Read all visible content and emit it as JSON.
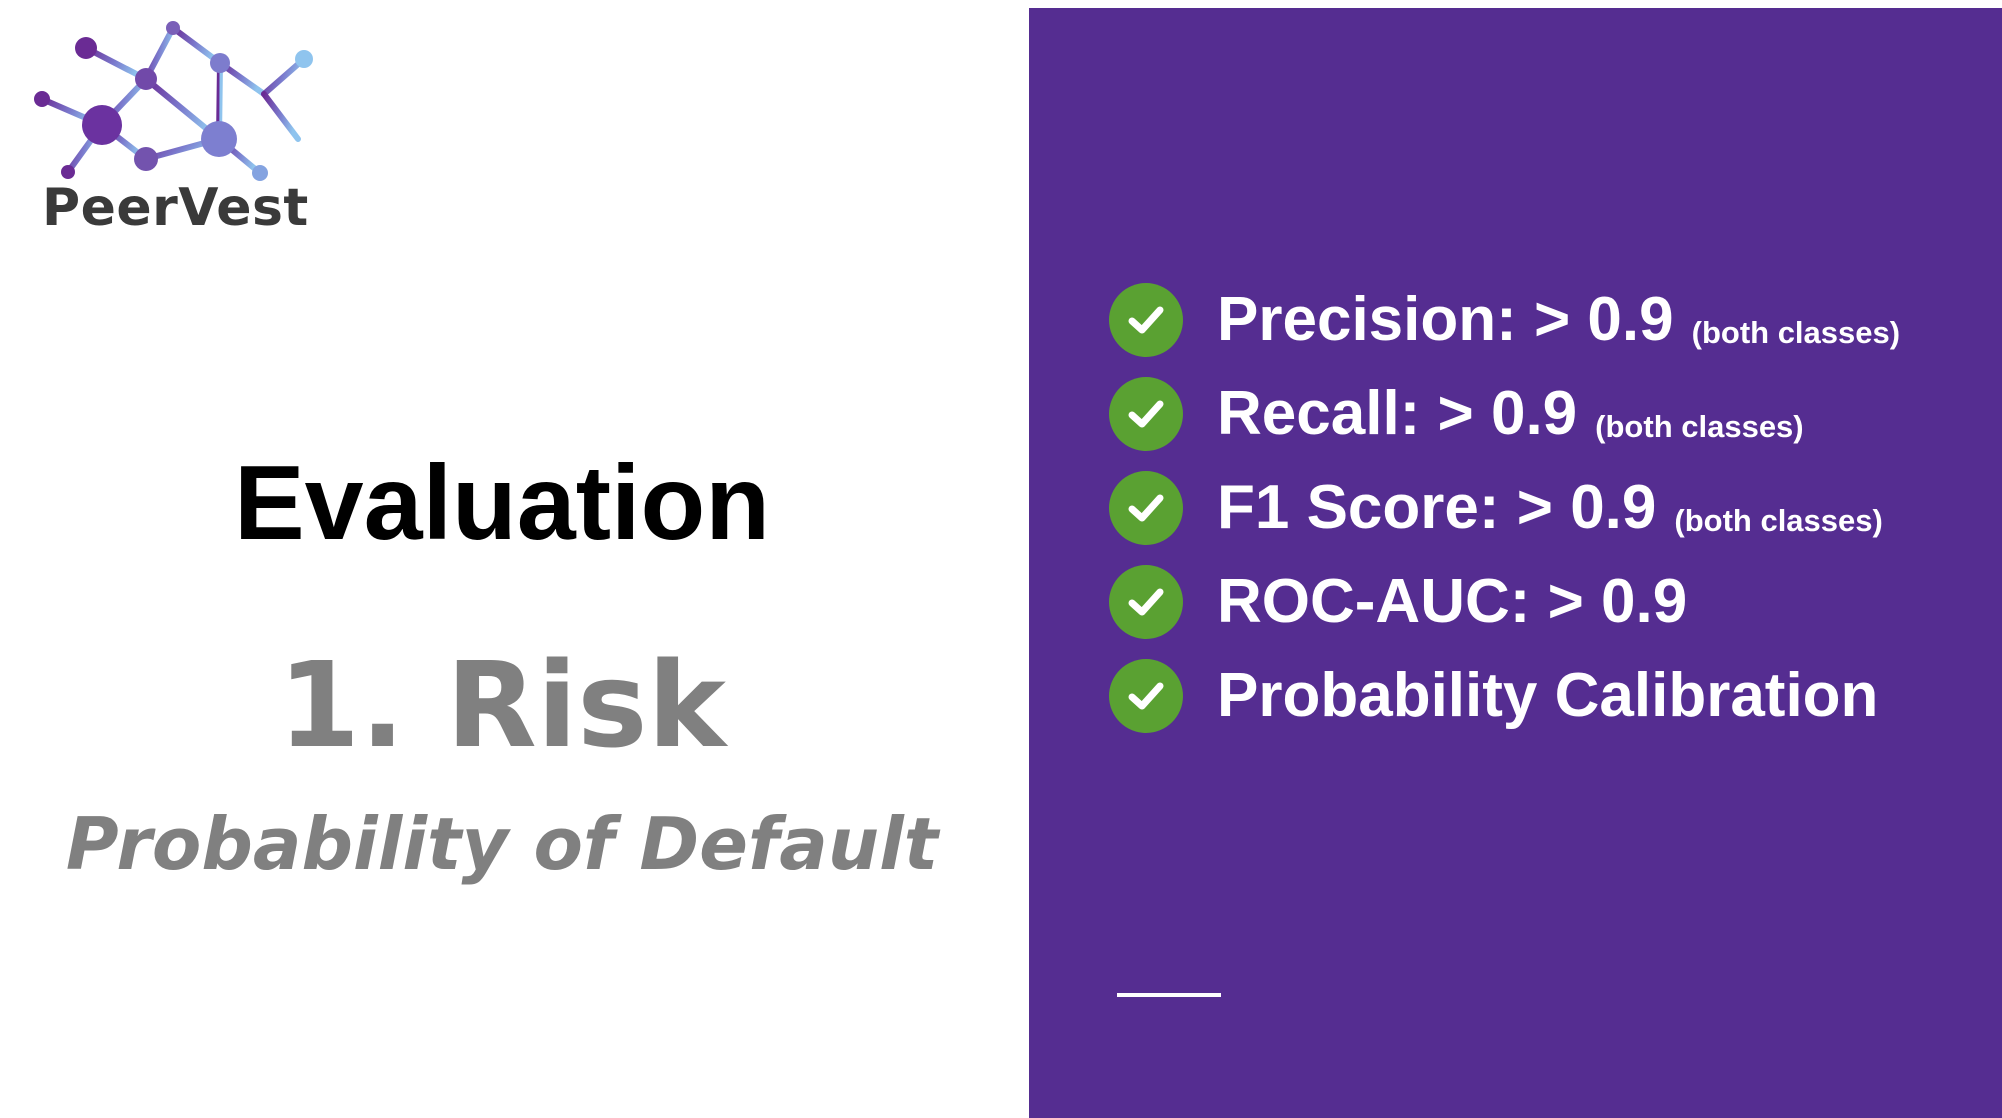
{
  "logo": {
    "name": "PeerVest",
    "icon": "network-graph-icon"
  },
  "heading": {
    "title": "Evaluation",
    "subtitle": "1. Risk",
    "subsubtitle": "Probability of Default"
  },
  "panel": {
    "background_color": "#552d91",
    "check_color": "#5aa132",
    "metrics": [
      {
        "label": "Precision: > 0.9",
        "note": "(both classes)"
      },
      {
        "label": "Recall: > 0.9",
        "note": "(both classes)"
      },
      {
        "label": "F1 Score: > 0.9",
        "note": "(both classes)"
      },
      {
        "label": "ROC-AUC: > 0.9",
        "note": ""
      },
      {
        "label": "Probability Calibration",
        "note": ""
      }
    ]
  }
}
